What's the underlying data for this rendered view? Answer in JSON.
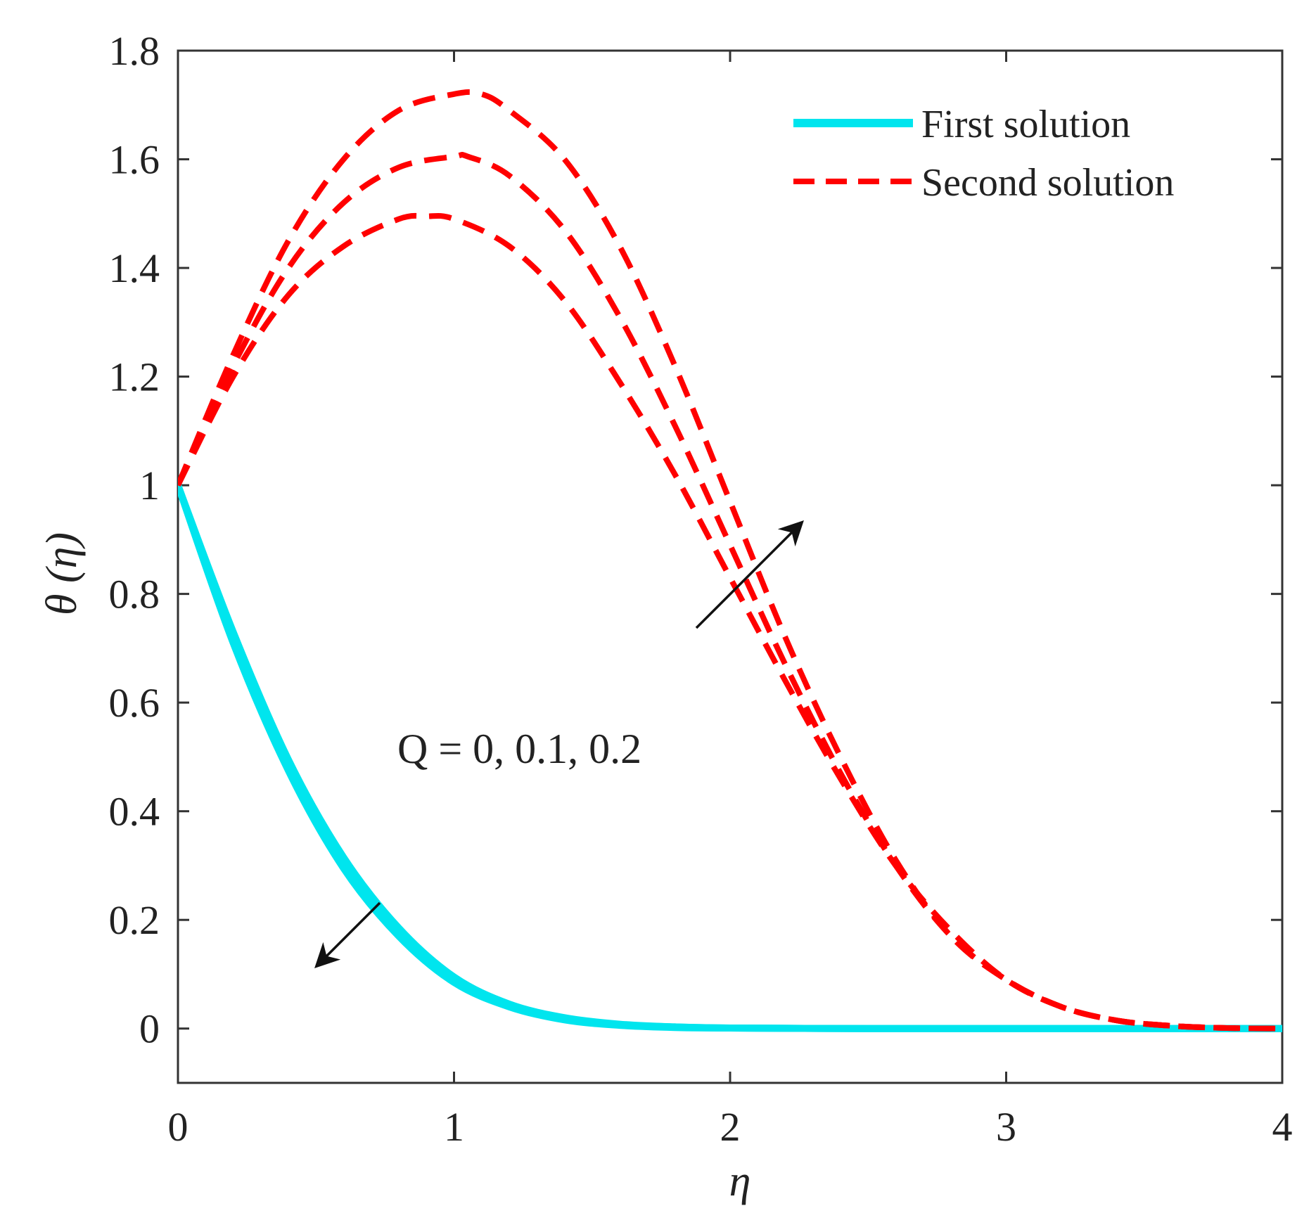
{
  "chart_data": {
    "type": "line",
    "title": "",
    "xlabel": "η",
    "ylabel": "θ (η)",
    "xlim": [
      0,
      4
    ],
    "ylim": [
      -0.1,
      1.8
    ],
    "xticks": [
      0,
      1,
      2,
      3,
      4
    ],
    "xtick_labels": [
      "0",
      "1",
      "2",
      "3",
      "4"
    ],
    "yticks": [
      0,
      0.2,
      0.4,
      0.6,
      0.8,
      1,
      1.2,
      1.4,
      1.6,
      1.8
    ],
    "ytick_labels": [
      "0",
      "0.2",
      "0.4",
      "0.6",
      "0.8",
      "1",
      "1.2",
      "1.4",
      "1.6",
      "1.8"
    ],
    "grid": false,
    "legend_position": "top-right",
    "legend": [
      {
        "label": "First solution",
        "color": "#00E5EE",
        "style": "solid"
      },
      {
        "label": "Second solution",
        "color": "#FF0000",
        "style": "dashed"
      }
    ],
    "annotation": "Q = 0, 0.1, 0.2",
    "series": [
      {
        "name": "First solution, Q = 0",
        "group": "First solution",
        "color": "#00E5EE",
        "style": "solid",
        "x": [
          0,
          0.2,
          0.4,
          0.6,
          0.8,
          1.0,
          1.2,
          1.4,
          1.6,
          1.8,
          2.0,
          2.5,
          3.0,
          3.5,
          4.0
        ],
        "y": [
          1.0,
          0.73,
          0.495,
          0.315,
          0.185,
          0.095,
          0.045,
          0.02,
          0.008,
          0.003,
          0.001,
          0,
          0,
          0,
          0
        ]
      },
      {
        "name": "First solution, Q = 0.1",
        "group": "First solution",
        "color": "#00E5EE",
        "style": "solid",
        "x": [
          0,
          0.2,
          0.4,
          0.6,
          0.8,
          1.0,
          1.2,
          1.4,
          1.6,
          1.8,
          2.0,
          2.5,
          3.0,
          3.5,
          4.0
        ],
        "y": [
          1.0,
          0.72,
          0.485,
          0.305,
          0.177,
          0.09,
          0.042,
          0.018,
          0.007,
          0.003,
          0.001,
          0,
          0,
          0,
          0
        ]
      },
      {
        "name": "First solution, Q = 0.2",
        "group": "First solution",
        "color": "#00E5EE",
        "style": "solid",
        "x": [
          0,
          0.2,
          0.4,
          0.6,
          0.8,
          1.0,
          1.2,
          1.4,
          1.6,
          1.8,
          2.0,
          2.5,
          3.0,
          3.5,
          4.0
        ],
        "y": [
          1.0,
          0.71,
          0.475,
          0.295,
          0.17,
          0.085,
          0.04,
          0.016,
          0.006,
          0.002,
          0.001,
          0,
          0,
          0,
          0
        ]
      },
      {
        "name": "Second solution, Q = 0",
        "group": "Second solution",
        "color": "#FF0000",
        "style": "dashed",
        "x": [
          0,
          0.2,
          0.4,
          0.6,
          0.8,
          0.9,
          1.0,
          1.2,
          1.4,
          1.6,
          1.8,
          2.0,
          2.2,
          2.4,
          2.6,
          2.8,
          3.0,
          3.2,
          3.4,
          3.6,
          3.8,
          4.0
        ],
        "y": [
          1.0,
          1.2,
          1.35,
          1.44,
          1.49,
          1.495,
          1.49,
          1.44,
          1.34,
          1.19,
          1.02,
          0.83,
          0.64,
          0.46,
          0.3,
          0.18,
          0.09,
          0.04,
          0.015,
          0.005,
          0.001,
          0
        ]
      },
      {
        "name": "Second solution, Q = 0.1",
        "group": "Second solution",
        "color": "#FF0000",
        "style": "dashed",
        "x": [
          0,
          0.2,
          0.4,
          0.6,
          0.8,
          1.0,
          1.05,
          1.2,
          1.4,
          1.6,
          1.8,
          2.0,
          2.2,
          2.4,
          2.6,
          2.8,
          3.0,
          3.2,
          3.4,
          3.6,
          3.8,
          4.0
        ],
        "y": [
          1.0,
          1.22,
          1.4,
          1.52,
          1.585,
          1.605,
          1.605,
          1.57,
          1.47,
          1.31,
          1.11,
          0.89,
          0.67,
          0.47,
          0.3,
          0.17,
          0.09,
          0.04,
          0.015,
          0.005,
          0.001,
          0
        ]
      },
      {
        "name": "Second solution, Q = 0.2",
        "group": "Second solution",
        "color": "#FF0000",
        "style": "dashed",
        "x": [
          0,
          0.2,
          0.4,
          0.6,
          0.8,
          1.0,
          1.1,
          1.2,
          1.4,
          1.6,
          1.8,
          2.0,
          2.2,
          2.4,
          2.6,
          2.8,
          3.0,
          3.2,
          3.4,
          3.6,
          3.8,
          4.0
        ],
        "y": [
          1.0,
          1.24,
          1.45,
          1.6,
          1.69,
          1.72,
          1.72,
          1.69,
          1.6,
          1.44,
          1.22,
          0.97,
          0.72,
          0.5,
          0.31,
          0.17,
          0.09,
          0.04,
          0.015,
          0.005,
          0.001,
          0
        ]
      }
    ]
  }
}
